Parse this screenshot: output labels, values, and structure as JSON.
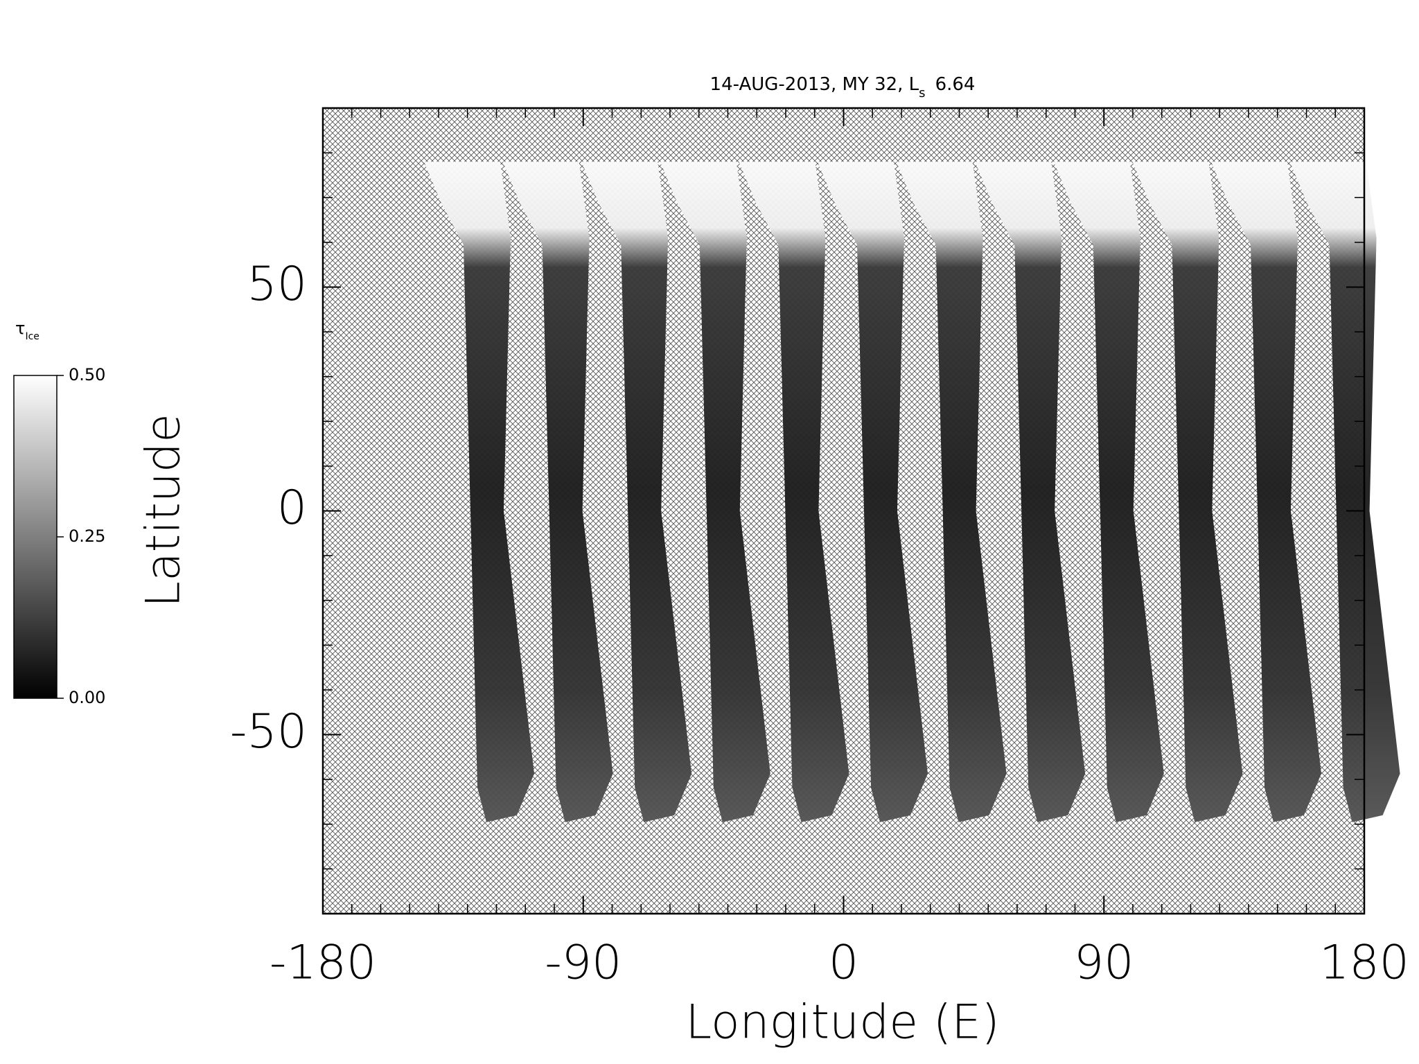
{
  "chart_data": {
    "type": "map",
    "title": {
      "main": "14-AUG-2013, MY 32,  L",
      "sub": "s",
      "end": "6.64"
    },
    "xlabel": "Longitude (E)",
    "ylabel": "Latitude",
    "xlim": [
      -180,
      180
    ],
    "xticks": [
      -180,
      -90,
      0,
      90,
      180
    ],
    "ylim": [
      -90,
      90
    ],
    "yticks": [
      -50,
      0,
      50
    ],
    "colorbar": {
      "label": {
        "main": "τ",
        "sub": "Ice"
      },
      "lim": [
        0,
        0.5
      ],
      "ticks": [
        {
          "value": 0,
          "label": "0.00"
        },
        {
          "value": 0.25,
          "label": "0.25"
        },
        {
          "value": 0.5,
          "label": "0.50"
        }
      ],
      "colors": [
        "#000000",
        "#ffffff"
      ]
    }
  }
}
